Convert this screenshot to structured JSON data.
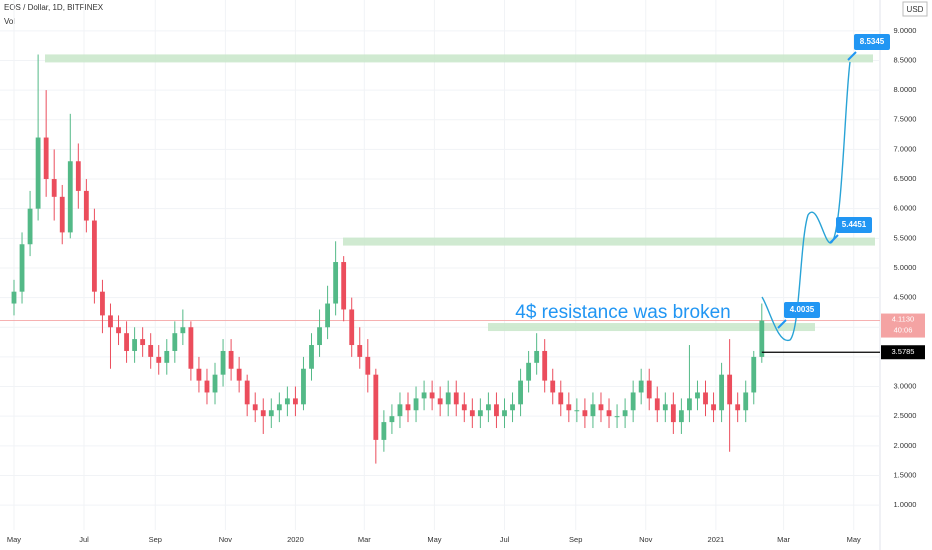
{
  "chart_data": {
    "type": "candlestick",
    "title": "EOS / Dollar, 1D, BITFINEX",
    "volume_label": "Vol",
    "currency": "USD",
    "annotation": "4$ resistance was broken",
    "up_color": "#53b987",
    "down_color": "#eb4d5c",
    "grid": true,
    "open": [
      4.4,
      4.6,
      5.4,
      6.0,
      7.2,
      6.5,
      6.2,
      5.6,
      6.8,
      6.3,
      5.8,
      4.6,
      4.2,
      4.0,
      3.9,
      3.6,
      3.8,
      3.7,
      3.5,
      3.4,
      3.6,
      3.9,
      4.0,
      3.3,
      3.1,
      2.9,
      3.2,
      3.6,
      3.3,
      3.1,
      2.7,
      2.6,
      2.5,
      2.6,
      2.7,
      2.8,
      2.7,
      3.3,
      3.7,
      4.0,
      4.4,
      5.1,
      4.3,
      3.7,
      3.5,
      3.2,
      2.1,
      2.4,
      2.5,
      2.7,
      2.6,
      2.8,
      2.9,
      2.8,
      2.7,
      2.9,
      2.7,
      2.6,
      2.5,
      2.6,
      2.7,
      2.5,
      2.6,
      2.7,
      3.1,
      3.4,
      3.6,
      3.1,
      2.9,
      2.7,
      2.6,
      2.6,
      2.5,
      2.7,
      2.6,
      2.5,
      2.5,
      2.6,
      2.9,
      3.1,
      2.8,
      2.6,
      2.7,
      2.4,
      2.6,
      2.8,
      2.9,
      2.7,
      2.6,
      3.2,
      2.7,
      2.6,
      2.9,
      3.5
    ],
    "high": [
      4.8,
      5.6,
      6.3,
      8.6,
      8.0,
      7.0,
      6.4,
      7.6,
      7.1,
      6.5,
      6.0,
      4.8,
      4.4,
      4.2,
      4.1,
      4.0,
      4.0,
      3.9,
      3.7,
      3.8,
      4.1,
      4.3,
      4.1,
      3.5,
      3.3,
      3.4,
      3.8,
      3.8,
      3.5,
      3.2,
      2.9,
      2.8,
      2.8,
      2.9,
      3.0,
      3.0,
      3.5,
      3.9,
      4.3,
      4.7,
      5.45,
      5.2,
      4.5,
      4.0,
      3.8,
      3.3,
      2.6,
      2.7,
      2.9,
      2.9,
      3.0,
      3.1,
      3.1,
      3.0,
      3.1,
      3.1,
      2.9,
      2.8,
      2.8,
      2.9,
      2.9,
      2.8,
      2.9,
      3.3,
      3.6,
      3.9,
      3.8,
      3.3,
      3.1,
      2.9,
      2.8,
      2.8,
      2.9,
      2.9,
      2.8,
      2.7,
      2.8,
      3.1,
      3.3,
      3.3,
      3.0,
      2.9,
      2.9,
      2.8,
      3.7,
      3.1,
      3.1,
      2.9,
      3.4,
      3.8,
      2.9,
      3.1,
      3.6,
      4.4
    ],
    "low": [
      4.2,
      4.4,
      5.2,
      5.8,
      6.2,
      5.8,
      5.4,
      5.5,
      6.0,
      5.6,
      4.4,
      3.9,
      3.3,
      3.7,
      3.4,
      3.4,
      3.5,
      3.3,
      3.2,
      3.2,
      3.4,
      3.7,
      3.1,
      2.9,
      2.7,
      2.7,
      3.0,
      3.1,
      2.9,
      2.5,
      2.4,
      2.2,
      2.3,
      2.4,
      2.5,
      2.5,
      2.6,
      3.1,
      3.5,
      3.8,
      4.2,
      4.1,
      3.5,
      3.3,
      2.9,
      1.7,
      1.9,
      2.2,
      2.3,
      2.4,
      2.4,
      2.6,
      2.6,
      2.5,
      2.5,
      2.5,
      2.4,
      2.3,
      2.3,
      2.4,
      2.3,
      2.3,
      2.4,
      2.5,
      2.9,
      3.2,
      2.9,
      2.7,
      2.5,
      2.4,
      2.4,
      2.3,
      2.3,
      2.4,
      2.3,
      2.3,
      2.3,
      2.4,
      2.7,
      2.6,
      2.4,
      2.4,
      2.2,
      2.2,
      2.4,
      2.6,
      2.5,
      2.4,
      2.4,
      1.9,
      2.4,
      2.4,
      2.7,
      3.4
    ],
    "close": [
      4.6,
      5.4,
      6.0,
      7.2,
      6.5,
      6.2,
      5.6,
      6.8,
      6.3,
      5.8,
      4.6,
      4.2,
      4.0,
      3.9,
      3.6,
      3.8,
      3.7,
      3.5,
      3.4,
      3.6,
      3.9,
      4.0,
      3.3,
      3.1,
      2.9,
      3.2,
      3.6,
      3.3,
      3.1,
      2.7,
      2.6,
      2.5,
      2.6,
      2.7,
      2.8,
      2.7,
      3.3,
      3.7,
      4.0,
      4.4,
      5.1,
      4.3,
      3.7,
      3.5,
      3.2,
      2.1,
      2.4,
      2.5,
      2.7,
      2.6,
      2.8,
      2.9,
      2.8,
      2.7,
      2.9,
      2.7,
      2.6,
      2.5,
      2.6,
      2.7,
      2.5,
      2.6,
      2.7,
      3.1,
      3.4,
      3.6,
      3.1,
      2.9,
      2.7,
      2.6,
      2.6,
      2.5,
      2.7,
      2.6,
      2.5,
      2.5,
      2.6,
      2.9,
      3.1,
      2.8,
      2.6,
      2.7,
      2.4,
      2.6,
      2.8,
      2.9,
      2.7,
      2.6,
      3.2,
      2.7,
      2.6,
      2.9,
      3.5,
      4.113
    ],
    "xlim": [
      -1.74,
      107.7
    ],
    "xticks": [
      {
        "value": 0,
        "label": "May"
      },
      {
        "value": 8.71,
        "label": "Jul"
      },
      {
        "value": 17.57,
        "label": "Sep"
      },
      {
        "value": 26.29,
        "label": "Nov"
      },
      {
        "value": 35,
        "label": "2020"
      },
      {
        "value": 43.57,
        "label": "Mar"
      },
      {
        "value": 52.29,
        "label": "May"
      },
      {
        "value": 61,
        "label": "Jul"
      },
      {
        "value": 69.86,
        "label": "Sep"
      },
      {
        "value": 78.57,
        "label": "Nov"
      },
      {
        "value": 87.29,
        "label": "2021"
      },
      {
        "value": 95.71,
        "label": "Mar"
      },
      {
        "value": 104.43,
        "label": "May"
      }
    ],
    "ylim": [
      0.58,
      9.52
    ],
    "yticks": [
      {
        "value": 1,
        "label": "1.0000"
      },
      {
        "value": 1.5,
        "label": "1.5000"
      },
      {
        "value": 2,
        "label": "2.0000"
      },
      {
        "value": 2.5,
        "label": "2.5000"
      },
      {
        "value": 3,
        "label": "3.0000"
      },
      {
        "value": 3.5,
        "label": "3.5000"
      },
      {
        "value": 4,
        "label": "4.0000"
      },
      {
        "value": 4.5,
        "label": "4.5000"
      },
      {
        "value": 5,
        "label": "5.0000"
      },
      {
        "value": 5.5,
        "label": "5.5000"
      },
      {
        "value": 6,
        "label": "6.0000"
      },
      {
        "value": 6.5,
        "label": "6.5000"
      },
      {
        "value": 7,
        "label": "7.0000"
      },
      {
        "value": 7.5,
        "label": "7.5000"
      },
      {
        "value": 8,
        "label": "8.0000"
      },
      {
        "value": 8.5,
        "label": "8.5000"
      },
      {
        "value": 9,
        "label": "9.0000"
      }
    ],
    "levels": [
      8.5345,
      5.4451,
      4.0035
    ],
    "last_price": {
      "value": 4.113,
      "label": "4.1130"
    },
    "countdown": "40:06",
    "marked_price": {
      "value": 3.5785,
      "label": "3.5785"
    }
  }
}
